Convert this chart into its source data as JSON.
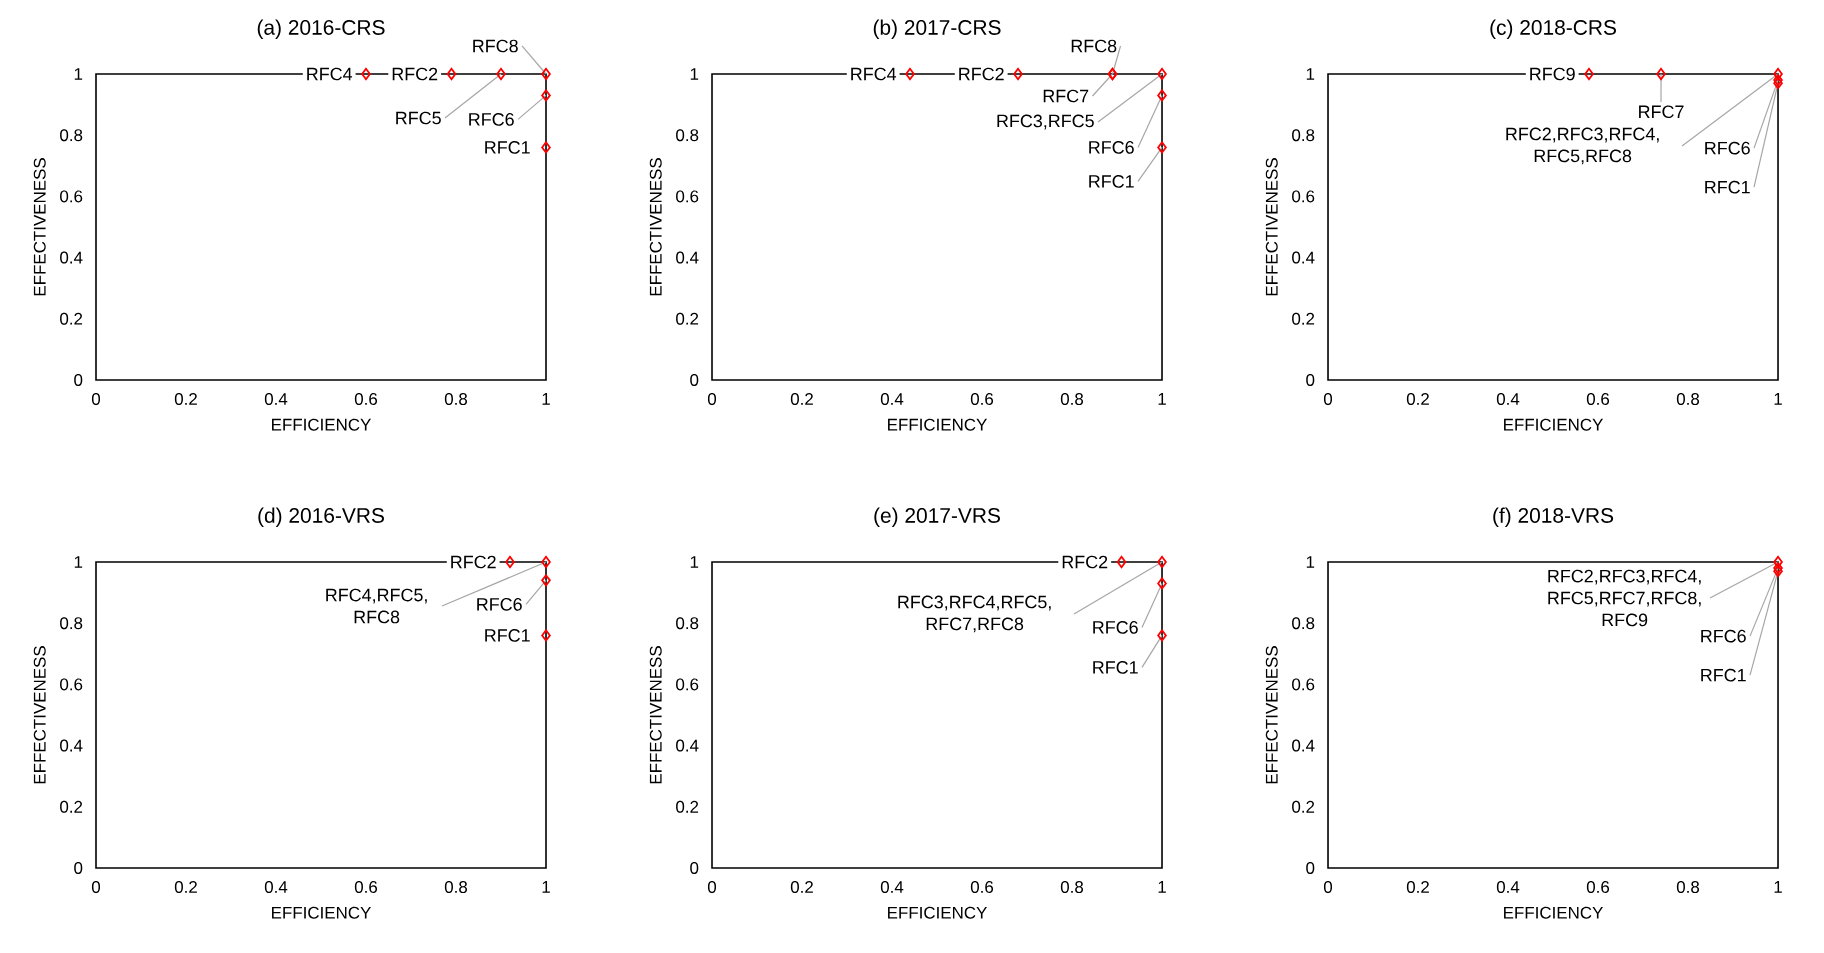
{
  "chart_data": [
    {
      "type": "scatter",
      "title": "(a) 2016-CRS",
      "xlabel": "EFFICIENCY",
      "ylabel": "EFFECTIVENESS",
      "x": [
        0.6,
        0.79,
        0.9,
        1,
        1,
        1
      ],
      "values": [
        1,
        1,
        1,
        1,
        0.93,
        0.76
      ],
      "color": "#ff0000",
      "marker": "diamond",
      "xlim": [
        0,
        1
      ],
      "ylim": [
        0,
        1
      ],
      "xticks": [
        0,
        0.2,
        0.4,
        0.6,
        0.8,
        1
      ],
      "yticks": [
        0,
        0.2,
        0.4,
        0.6,
        0.8,
        1
      ],
      "annotations": [
        {
          "text": "RFC4",
          "x": 0.6,
          "y": 1
        },
        {
          "text": "RFC2",
          "x": 0.79,
          "y": 1
        },
        {
          "text": "RFC5",
          "x": 0.9,
          "y": 1
        },
        {
          "text": "RFC8",
          "x": 1,
          "y": 1
        },
        {
          "text": "RFC6",
          "x": 1,
          "y": 0.93
        },
        {
          "text": "RFC1",
          "x": 1,
          "y": 0.76
        }
      ]
    },
    {
      "type": "scatter",
      "title": "(b) 2017-CRS",
      "xlabel": "EFFICIENCY",
      "ylabel": "EFFECTIVENESS",
      "x": [
        0.44,
        0.68,
        0.89,
        0.89,
        1,
        1,
        1
      ],
      "values": [
        1,
        1,
        1,
        1,
        1,
        0.93,
        0.76
      ],
      "color": "#ff0000",
      "marker": "diamond",
      "xlim": [
        0,
        1
      ],
      "ylim": [
        0,
        1
      ],
      "xticks": [
        0,
        0.2,
        0.4,
        0.6,
        0.8,
        1
      ],
      "yticks": [
        0,
        0.2,
        0.4,
        0.6,
        0.8,
        1
      ],
      "annotations": [
        {
          "text": "RFC4",
          "x": 0.44,
          "y": 1
        },
        {
          "text": "RFC2",
          "x": 0.68,
          "y": 1
        },
        {
          "text": "RFC8",
          "x": 0.89,
          "y": 1
        },
        {
          "text": "RFC7",
          "x": 0.89,
          "y": 1
        },
        {
          "text": "RFC3,RFC5",
          "x": 1,
          "y": 1
        },
        {
          "text": "RFC6",
          "x": 1,
          "y": 0.93
        },
        {
          "text": "RFC1",
          "x": 1,
          "y": 0.76
        }
      ]
    },
    {
      "type": "scatter",
      "title": "(c) 2018-CRS",
      "xlabel": "EFFICIENCY",
      "ylabel": "EFFECTIVENESS",
      "x": [
        0.58,
        0.74,
        1,
        1,
        1
      ],
      "values": [
        1,
        1,
        1,
        0.98,
        0.97
      ],
      "color": "#ff0000",
      "marker": "diamond",
      "xlim": [
        0,
        1
      ],
      "ylim": [
        0,
        1
      ],
      "xticks": [
        0,
        0.2,
        0.4,
        0.6,
        0.8,
        1
      ],
      "yticks": [
        0,
        0.2,
        0.4,
        0.6,
        0.8,
        1
      ],
      "annotations": [
        {
          "text": "RFC9",
          "x": 0.58,
          "y": 1
        },
        {
          "text": "RFC7",
          "x": 0.74,
          "y": 1
        },
        {
          "text": "RFC2,RFC3,RFC4, RFC5,RFC8",
          "x": 1,
          "y": 1
        },
        {
          "text": "RFC6",
          "x": 1,
          "y": 0.98
        },
        {
          "text": "RFC1",
          "x": 1,
          "y": 0.97
        }
      ]
    },
    {
      "type": "scatter",
      "title": "(d) 2016-VRS",
      "xlabel": "EFFICIENCY",
      "ylabel": "EFFECTIVENESS",
      "x": [
        0.92,
        1,
        1,
        1
      ],
      "values": [
        1,
        1,
        0.94,
        0.76
      ],
      "color": "#ff0000",
      "marker": "diamond",
      "xlim": [
        0,
        1
      ],
      "ylim": [
        0,
        1
      ],
      "xticks": [
        0,
        0.2,
        0.4,
        0.6,
        0.8,
        1
      ],
      "yticks": [
        0,
        0.2,
        0.4,
        0.6,
        0.8,
        1
      ],
      "annotations": [
        {
          "text": "RFC2",
          "x": 0.92,
          "y": 1
        },
        {
          "text": "RFC4,RFC5, RFC8",
          "x": 1,
          "y": 1
        },
        {
          "text": "RFC6",
          "x": 1,
          "y": 0.94
        },
        {
          "text": "RFC1",
          "x": 1,
          "y": 0.76
        }
      ]
    },
    {
      "type": "scatter",
      "title": "(e) 2017-VRS",
      "xlabel": "EFFICIENCY",
      "ylabel": "EFFECTIVENESS",
      "x": [
        0.91,
        1,
        1,
        1
      ],
      "values": [
        1,
        1,
        0.93,
        0.76
      ],
      "color": "#ff0000",
      "marker": "diamond",
      "xlim": [
        0,
        1
      ],
      "ylim": [
        0,
        1
      ],
      "xticks": [
        0,
        0.2,
        0.4,
        0.6,
        0.8,
        1
      ],
      "yticks": [
        0,
        0.2,
        0.4,
        0.6,
        0.8,
        1
      ],
      "annotations": [
        {
          "text": "RFC2",
          "x": 0.91,
          "y": 1
        },
        {
          "text": "RFC3,RFC4,RFC5, RFC7,RFC8",
          "x": 1,
          "y": 1
        },
        {
          "text": "RFC6",
          "x": 1,
          "y": 0.93
        },
        {
          "text": "RFC1",
          "x": 1,
          "y": 0.76
        }
      ]
    },
    {
      "type": "scatter",
      "title": "(f) 2018-VRS",
      "xlabel": "EFFICIENCY",
      "ylabel": "EFFECTIVENESS",
      "x": [
        1,
        1,
        1
      ],
      "values": [
        1,
        0.98,
        0.97
      ],
      "color": "#ff0000",
      "marker": "diamond",
      "xlim": [
        0,
        1
      ],
      "ylim": [
        0,
        1
      ],
      "xticks": [
        0,
        0.2,
        0.4,
        0.6,
        0.8,
        1
      ],
      "yticks": [
        0,
        0.2,
        0.4,
        0.6,
        0.8,
        1
      ],
      "annotations": [
        {
          "text": "RFC2,RFC3,RFC4, RFC5,RFC7,RFC8, RFC9",
          "x": 1,
          "y": 1
        },
        {
          "text": "RFC6",
          "x": 1,
          "y": 0.98
        },
        {
          "text": "RFC1",
          "x": 1,
          "y": 0.97
        }
      ]
    }
  ]
}
